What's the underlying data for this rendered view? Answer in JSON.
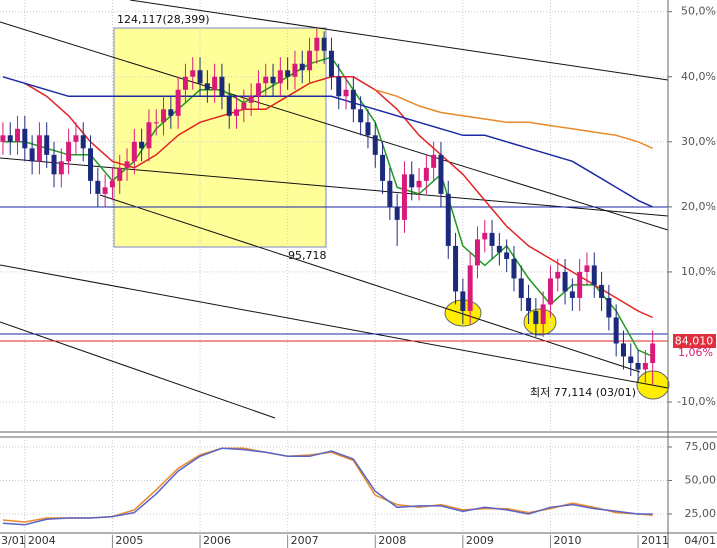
{
  "chart_data": [
    {
      "type": "candlestick",
      "x": [
        -3,
        -2,
        -1,
        0,
        1,
        2,
        3,
        4,
        5,
        6,
        7,
        8,
        9,
        10,
        11,
        12,
        13,
        14,
        15,
        16,
        17,
        18,
        19,
        20,
        21,
        22,
        23,
        24,
        25,
        26,
        27,
        28,
        29,
        30,
        31,
        32,
        33,
        34,
        35,
        36,
        37,
        38,
        39,
        40,
        41,
        42,
        43,
        44,
        45,
        46,
        47,
        48,
        49,
        50,
        51,
        52,
        53,
        54,
        55,
        56,
        57,
        58,
        59,
        60,
        61,
        62,
        63,
        64,
        65,
        66,
        67,
        68,
        69,
        70,
        71,
        72,
        73,
        74,
        75,
        76,
        77,
        78,
        79,
        80,
        81,
        82,
        83,
        84,
        85,
        86
      ],
      "open": [
        30,
        31,
        30,
        32,
        29,
        27,
        31,
        28,
        25,
        27,
        30,
        31,
        29,
        24,
        22,
        23,
        24,
        26,
        27,
        30,
        29,
        33,
        33,
        35,
        34,
        38,
        40,
        41,
        39,
        38,
        40,
        37,
        34,
        35,
        36,
        37,
        39,
        40,
        39,
        41,
        40,
        42,
        41,
        44,
        46,
        44,
        40,
        37,
        38,
        35,
        33,
        31,
        28,
        24,
        20,
        18,
        25,
        23,
        24,
        26,
        28,
        22,
        14,
        7,
        4,
        11,
        15,
        16,
        14,
        13,
        12,
        9,
        6,
        4,
        2,
        5,
        9,
        10,
        7,
        6,
        10,
        11,
        8,
        6,
        3,
        -1,
        -3,
        -4,
        -5,
        -4
      ],
      "high": [
        33,
        33,
        34,
        34,
        31,
        33,
        33,
        30,
        29,
        32,
        33,
        33,
        31,
        26,
        25,
        26,
        28,
        29,
        32,
        32,
        35,
        35,
        37,
        37,
        40,
        42,
        43,
        43,
        41,
        42,
        42,
        39,
        37,
        38,
        39,
        41,
        42,
        42,
        43,
        43,
        44,
        44,
        46,
        47.5,
        47,
        46,
        42,
        40,
        40,
        37,
        35,
        33,
        30,
        26,
        22,
        27,
        27,
        26,
        28,
        30,
        30,
        24,
        16,
        9,
        13,
        17,
        18,
        18,
        16,
        15,
        14,
        11,
        8,
        6,
        7,
        11,
        12,
        12,
        9,
        12,
        13,
        13,
        10,
        8,
        5,
        1,
        -1,
        -2,
        -2,
        1
      ],
      "low": [
        28,
        28,
        28,
        27,
        25,
        25,
        26,
        23,
        23,
        25,
        28,
        27,
        22,
        20,
        20,
        21,
        22,
        24,
        25,
        27,
        27,
        31,
        31,
        32,
        32,
        36,
        38,
        37,
        36,
        36,
        35,
        32,
        32,
        33,
        34,
        35,
        37,
        37,
        37,
        38,
        38,
        39,
        39,
        42,
        42,
        38,
        35,
        35,
        33,
        31,
        29,
        26,
        22,
        18,
        14,
        16,
        21,
        21,
        22,
        24,
        20,
        12,
        5,
        2,
        2,
        9,
        13,
        12,
        11,
        10,
        7,
        4,
        2,
        0,
        0,
        3,
        7,
        5,
        4,
        4,
        8,
        6,
        4,
        1,
        -3,
        -5,
        -6,
        -7,
        -7,
        -7.4
      ],
      "close": [
        31,
        30,
        32,
        29,
        27,
        31,
        28,
        25,
        27,
        30,
        31,
        29,
        24,
        22,
        23,
        24,
        26,
        27,
        30,
        29,
        33,
        33,
        35,
        34,
        38,
        40,
        41,
        39,
        38,
        40,
        37,
        34,
        35,
        36,
        37,
        39,
        40,
        39,
        41,
        40,
        42,
        41,
        44,
        46,
        44,
        40,
        37,
        38,
        35,
        33,
        31,
        28,
        24,
        20,
        18,
        25,
        23,
        24,
        26,
        28,
        22,
        14,
        7,
        4,
        11,
        15,
        16,
        14,
        13,
        12,
        9,
        6,
        4,
        2,
        5,
        9,
        10,
        7,
        6,
        10,
        11,
        8,
        6,
        3,
        -1,
        -3,
        -4,
        -5,
        -4,
        -1
      ],
      "up_color": "#d81b7a",
      "down_color": "#1c2a7c",
      "series": [
        {
          "color": "#1e9a1e",
          "x": [
            -3,
            0,
            3,
            6,
            9,
            12,
            15,
            18,
            21,
            24,
            27,
            30,
            33,
            36,
            39,
            42,
            45,
            48,
            51,
            54,
            57,
            60,
            63,
            66,
            69,
            72,
            75,
            78,
            81,
            84,
            86
          ],
          "values": [
            30,
            30,
            29,
            28,
            28,
            24,
            27,
            32,
            35,
            38,
            38,
            36,
            38,
            40,
            42,
            43,
            38,
            33,
            23,
            22,
            25,
            14,
            11,
            14,
            9,
            5,
            8,
            8,
            4,
            -2,
            -3
          ]
        },
        {
          "color": "#e02424",
          "x": [
            0,
            3,
            6,
            9,
            12,
            15,
            18,
            21,
            24,
            27,
            30,
            33,
            36,
            39,
            42,
            45,
            48,
            51,
            54,
            57,
            60,
            63,
            66,
            69,
            72,
            75,
            78,
            81,
            84,
            86
          ],
          "values": [
            39,
            37,
            34,
            30,
            27,
            26,
            28,
            31,
            33,
            34,
            35,
            35,
            37,
            39,
            40,
            40,
            38,
            35,
            31,
            28,
            25,
            21,
            17,
            14,
            12,
            10,
            8,
            6,
            4,
            3
          ]
        },
        {
          "color": "#1c2aa6",
          "x": [
            -3,
            0,
            3,
            6,
            9,
            12,
            15,
            18,
            21,
            24,
            27,
            30,
            33,
            36,
            39,
            42,
            45,
            48,
            51,
            54,
            57,
            60,
            63,
            66,
            69,
            72,
            75,
            78,
            81,
            84,
            86
          ],
          "values": [
            40,
            39,
            38,
            37,
            37,
            37,
            37,
            37,
            37,
            37,
            37,
            37,
            37,
            37,
            37,
            37,
            36,
            35,
            34,
            33,
            32,
            31,
            31,
            30,
            29,
            28,
            27,
            25,
            23,
            21,
            20
          ]
        },
        {
          "color": "#e8892a",
          "x": [
            48,
            51,
            54,
            57,
            60,
            63,
            66,
            69,
            72,
            75,
            78,
            81,
            84,
            86
          ],
          "values": [
            38,
            37,
            35.5,
            34.5,
            34,
            33.5,
            33,
            33,
            32.5,
            32,
            31.5,
            31,
            30,
            29
          ]
        }
      ],
      "ylim": [
        -14.3,
        51.8
      ],
      "yticks": [
        {
          "value": 50,
          "label": "50,0%"
        },
        {
          "value": 40,
          "label": "40,0%"
        },
        {
          "value": 30,
          "label": "30,0%"
        },
        {
          "value": 20,
          "label": "20,0%"
        },
        {
          "value": 10,
          "label": "10,0%"
        },
        {
          "value": -10,
          "label": "-10,0%"
        }
      ],
      "grid": true,
      "annotations": [
        "124,117(28,399)",
        "95,718",
        "최저 77,114 (03/01)"
      ],
      "price_label": "84,010",
      "change_label": "1,06%"
    },
    {
      "type": "line",
      "series": [
        {
          "color": "#e8892a",
          "x": [
            -3,
            0,
            3,
            6,
            9,
            12,
            15,
            18,
            21,
            24,
            27,
            30,
            33,
            36,
            39,
            42,
            45,
            48,
            51,
            54,
            57,
            60,
            63,
            66,
            69,
            72,
            75,
            78,
            81,
            84,
            86
          ],
          "values": [
            20.5,
            19,
            22,
            22,
            22,
            23,
            28,
            43,
            59,
            69,
            74,
            74,
            71,
            68,
            69,
            71,
            65,
            39,
            32,
            30,
            32,
            28,
            29,
            29,
            26,
            29,
            33,
            30,
            26,
            25,
            24
          ]
        },
        {
          "color": "#5a64c8",
          "x": [
            -3,
            0,
            3,
            6,
            9,
            12,
            15,
            18,
            21,
            24,
            27,
            30,
            33,
            36,
            39,
            42,
            45,
            48,
            51,
            54,
            57,
            60,
            63,
            66,
            69,
            72,
            75,
            78,
            81,
            84,
            86
          ],
          "values": [
            18,
            17,
            21,
            22,
            22,
            23,
            26,
            40,
            57,
            68,
            74,
            73,
            71,
            68,
            68,
            72,
            66,
            42,
            30,
            31,
            31,
            27,
            30,
            28,
            25,
            30,
            32,
            29,
            27,
            25,
            25
          ]
        }
      ],
      "xlim": [
        -3.4,
        88.1
      ],
      "xticks": [
        {
          "value": 0,
          "label": "2004"
        },
        {
          "value": 12,
          "label": "2005"
        },
        {
          "value": 24,
          "label": "2006"
        },
        {
          "value": 36,
          "label": "2007"
        },
        {
          "value": 48,
          "label": "2008"
        },
        {
          "value": 60,
          "label": "2009"
        },
        {
          "value": 72,
          "label": "2010"
        },
        {
          "value": 84,
          "label": "2011"
        }
      ],
      "start_label": "3/01",
      "end_label": "04/01",
      "ylim": [
        9.3,
        80.2
      ],
      "yticks": [
        {
          "value": 75,
          "label": "75,00"
        },
        {
          "value": 50,
          "label": "50,00"
        },
        {
          "value": 25,
          "label": "25,00"
        }
      ],
      "grid": true
    }
  ]
}
